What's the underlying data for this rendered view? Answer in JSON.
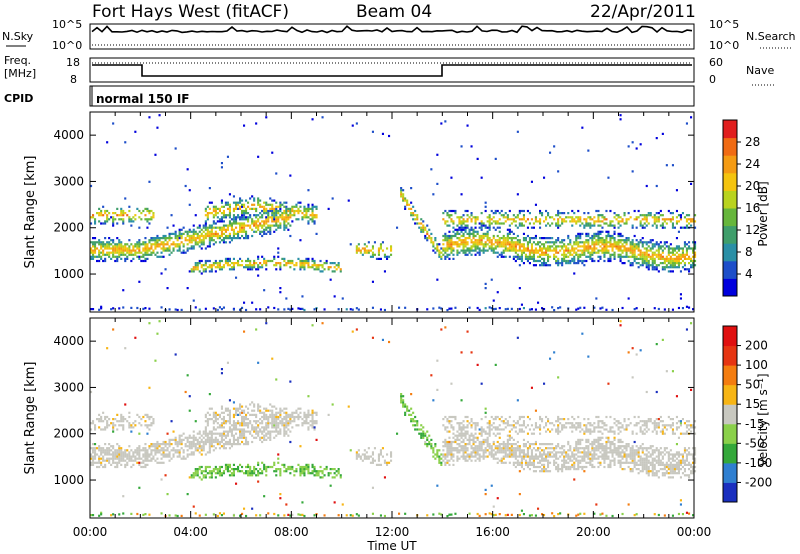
{
  "header": {
    "radar": "Fort Hays West (fitACF)",
    "beam": "Beam 04",
    "date": "22/Apr/2011"
  },
  "status_panel": {
    "nsky_label": "N.Sky",
    "nsky_ticks": [
      "10^5",
      "10^0"
    ],
    "nsearch_label": "N.Search",
    "nsearch_ticks": [
      "10^5",
      "10^0"
    ],
    "freq_label_1": "Freq.",
    "freq_label_2": "[MHz]",
    "freq_ticks": [
      "18",
      "8"
    ],
    "nave_label": "Nave",
    "nave_ticks": [
      "60",
      "0"
    ],
    "cpid_label": "CPID",
    "cpid_value": "normal 150 IF"
  },
  "chart_data": [
    {
      "type": "heatmap",
      "name": "power",
      "ylabel": "Slant Range [km]",
      "y_ticks": [
        "4000",
        "3000",
        "2000",
        "1000"
      ],
      "ylim": [
        180,
        4500
      ],
      "colorbar_label": "Power [dB]",
      "colorbar_ticks": [
        "28",
        "24",
        "20",
        "16",
        "12",
        "8",
        "4"
      ],
      "colorscale": [
        "#0000dd",
        "#1d4ec9",
        "#2a8fa6",
        "#3f9e6b",
        "#66b63c",
        "#b9d31f",
        "#f4c40f",
        "#f49b14",
        "#f06b14",
        "#e01e1e"
      ]
    },
    {
      "type": "heatmap",
      "name": "velocity",
      "ylabel": "Slant Range [km]",
      "y_ticks": [
        "4000",
        "3000",
        "2000",
        "1000"
      ],
      "ylim": [
        180,
        4500
      ],
      "colorbar_label": "Velocity [m s⁻¹]",
      "colorbar_ticks": [
        "200",
        "100",
        "50",
        "15",
        "-15",
        "-50",
        "-100",
        "-200"
      ],
      "colorscale": [
        "#1a2fbf",
        "#2f7fd0",
        "#34a83a",
        "#8ad04a",
        "#c8c8c0",
        "#f7b515",
        "#f47d10",
        "#e63512",
        "#e01010"
      ]
    }
  ],
  "x_axis": {
    "label": "Time UT",
    "ticks": [
      "00:00",
      "04:00",
      "08:00",
      "12:00",
      "16:00",
      "20:00",
      "00:00"
    ]
  }
}
